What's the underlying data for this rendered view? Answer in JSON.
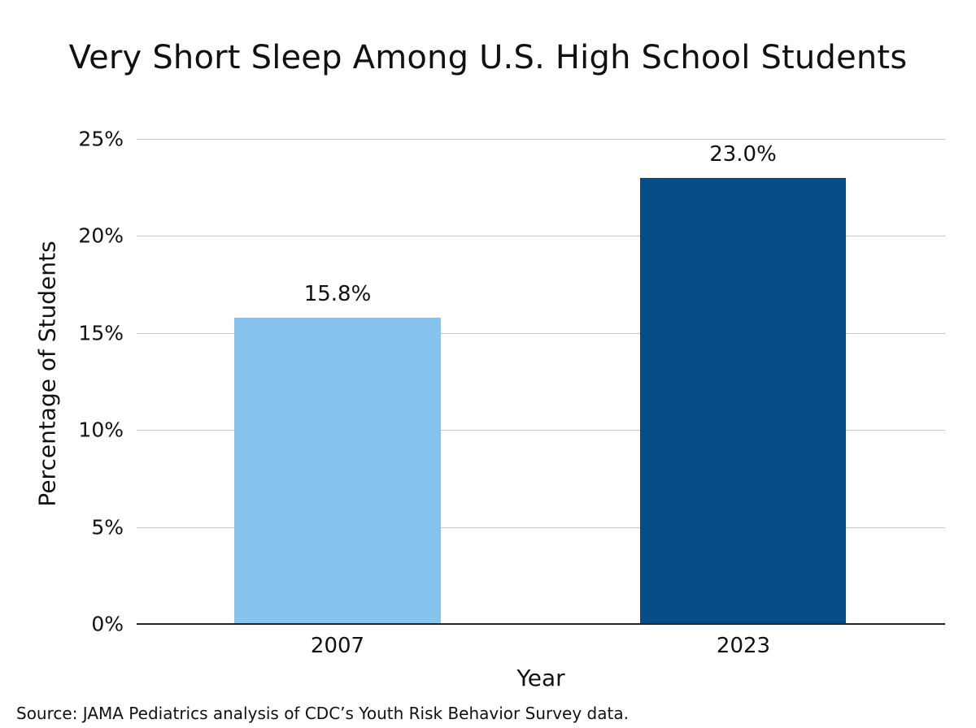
{
  "chart_data": {
    "type": "bar",
    "title": "Very Short Sleep Among U.S. High School Students",
    "xlabel": "Year",
    "ylabel": "Percentage of Students",
    "categories": [
      "2007",
      "2023"
    ],
    "values": [
      15.8,
      23.0
    ],
    "value_labels": [
      "15.8%",
      "23.0%"
    ],
    "bar_colors": [
      "#85C3EC",
      "#054D87"
    ],
    "yticks": [
      "0%",
      "5%",
      "10%",
      "15%",
      "20%",
      "25%"
    ],
    "ylim": [
      0,
      25
    ],
    "grid": true,
    "legend": null,
    "source": "Source: JAMA Pediatrics analysis of CDC’s Youth Risk Behavior Survey data."
  }
}
